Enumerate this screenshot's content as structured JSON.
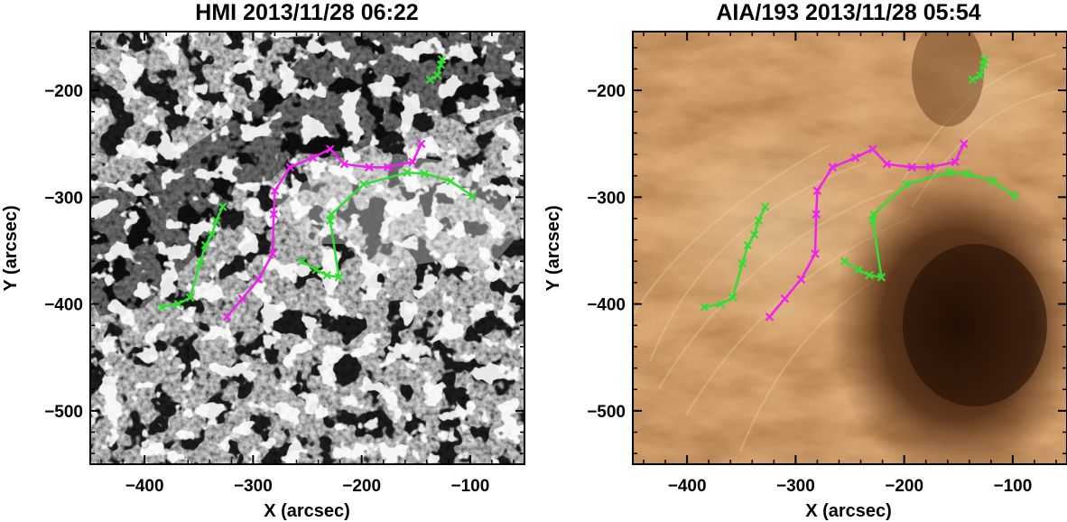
{
  "panels": [
    {
      "title": "HMI 2013/11/28 06:22",
      "image": "HMI magnetogram (gray, black/white polarity patches)",
      "xlabel": "X (arcsec)",
      "ylabel": "Y (arcsec)"
    },
    {
      "title": "AIA/193 2013/11/28 05:54",
      "image": "AIA 193 Å EUV image (copper colormap, dark coronal hole at right)",
      "xlabel": "X (arcsec)",
      "ylabel": "Y (arcsec)"
    }
  ],
  "chart_data": {
    "type": "line",
    "xlim": [
      -450,
      -50
    ],
    "ylim": [
      -550,
      -145
    ],
    "xticks": [
      -400,
      -300,
      -200,
      -100
    ],
    "yticks": [
      -200,
      -300,
      -400,
      -500
    ],
    "xtick_labels": [
      "−400",
      "−300",
      "−200",
      "−100"
    ],
    "ytick_labels": [
      "−200",
      "−300",
      "−400",
      "−500"
    ],
    "colors": {
      "magenta": "#ee22ee",
      "green": "#33dd33"
    },
    "series": [
      {
        "color": "magenta",
        "points": [
          [
            -324,
            -412
          ],
          [
            -310,
            -395
          ],
          [
            -295,
            -377
          ],
          [
            -282,
            -353
          ],
          [
            -281,
            -316
          ],
          [
            -280,
            -294
          ],
          [
            -266,
            -272
          ],
          [
            -245,
            -263
          ],
          [
            -229,
            -255
          ],
          [
            -216,
            -269
          ],
          [
            -193,
            -272
          ],
          [
            -176,
            -272
          ],
          [
            -153,
            -267
          ],
          [
            -145,
            -250
          ]
        ]
      },
      {
        "color": "green",
        "points": [
          [
            -384,
            -403
          ],
          [
            -369,
            -400
          ],
          [
            -358,
            -394
          ],
          [
            -349,
            -362
          ],
          [
            -344,
            -345
          ],
          [
            -338,
            -335
          ],
          [
            -334,
            -322
          ],
          [
            -328,
            -309
          ]
        ]
      },
      {
        "color": "green",
        "points": [
          [
            -255,
            -360
          ],
          [
            -242,
            -368
          ],
          [
            -232,
            -373
          ],
          [
            -221,
            -375
          ],
          [
            -229,
            -322
          ],
          [
            -228,
            -316
          ],
          [
            -198,
            -288
          ],
          [
            -158,
            -277
          ],
          [
            -142,
            -278
          ],
          [
            -118,
            -285
          ],
          [
            -98,
            -299
          ]
        ]
      },
      {
        "color": "green",
        "points": [
          [
            -137,
            -190
          ],
          [
            -130,
            -186
          ],
          [
            -127,
            -176
          ],
          [
            -126,
            -171
          ]
        ]
      }
    ]
  }
}
